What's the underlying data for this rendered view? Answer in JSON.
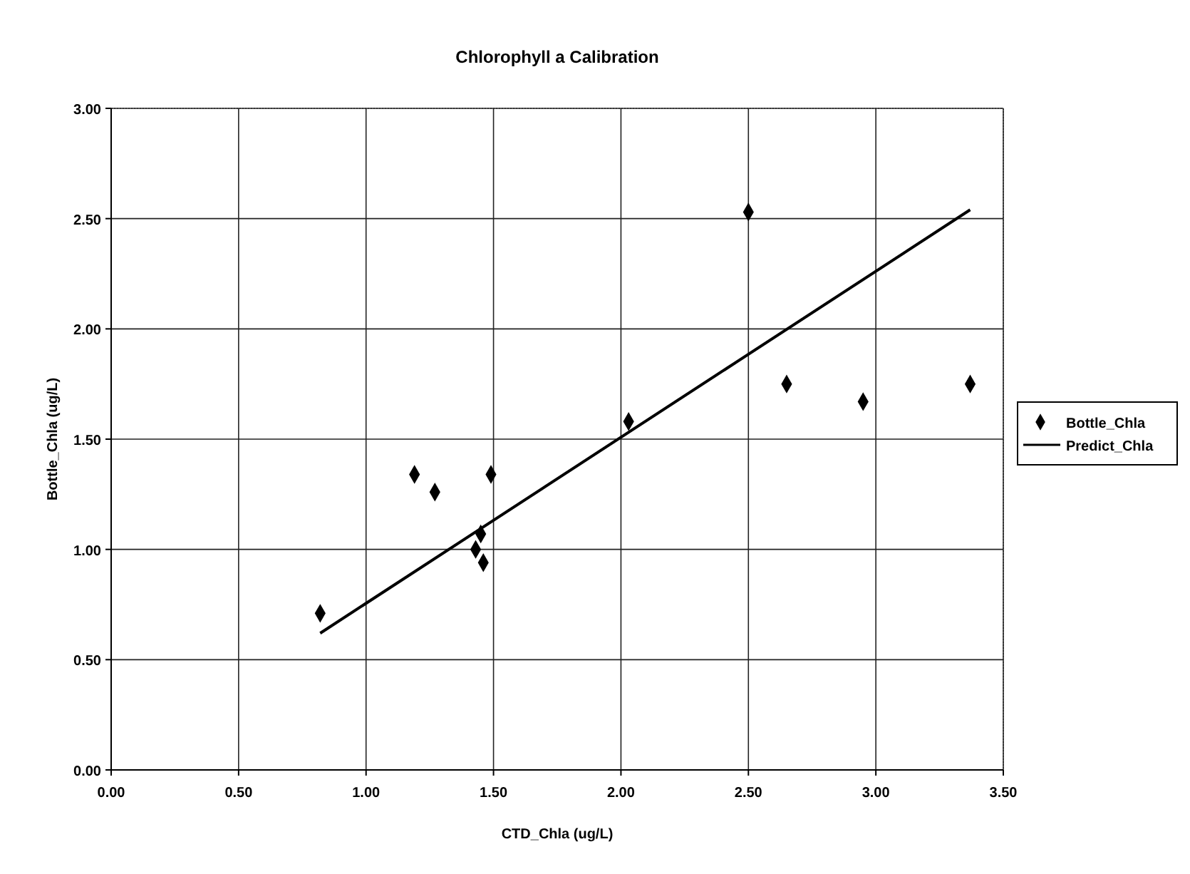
{
  "chart_data": {
    "type": "scatter",
    "title": "Chlorophyll a Calibration",
    "xlabel": "CTD_Chla (ug/L)",
    "ylabel": "Bottle_Chla (ug/L)",
    "xlim": [
      0,
      3.5
    ],
    "ylim": [
      0,
      3
    ],
    "xticks": [
      {
        "value": 0,
        "label": "0.00"
      },
      {
        "value": 0.5,
        "label": "0.50"
      },
      {
        "value": 1,
        "label": "1.00"
      },
      {
        "value": 1.5,
        "label": "1.50"
      },
      {
        "value": 2,
        "label": "2.00"
      },
      {
        "value": 2.5,
        "label": "2.50"
      },
      {
        "value": 3,
        "label": "3.00"
      },
      {
        "value": 3.5,
        "label": "3.50"
      }
    ],
    "yticks": [
      {
        "value": 0,
        "label": "0.00"
      },
      {
        "value": 0.5,
        "label": "0.50"
      },
      {
        "value": 1,
        "label": "1.00"
      },
      {
        "value": 1.5,
        "label": "1.50"
      },
      {
        "value": 2,
        "label": "2.00"
      },
      {
        "value": 2.5,
        "label": "2.50"
      },
      {
        "value": 3,
        "label": "3.00"
      }
    ],
    "grid": true,
    "legend": "right",
    "series": [
      {
        "name": "Bottle_Chla",
        "color": "#000000",
        "marker": "diamond",
        "x": [
          0.82,
          1.19,
          1.27,
          1.43,
          1.45,
          1.46,
          1.49,
          2.03,
          2.5,
          2.65,
          2.95,
          3.37
        ],
        "values": [
          0.71,
          1.34,
          1.26,
          1.0,
          1.07,
          0.94,
          1.34,
          1.58,
          2.53,
          1.75,
          1.67,
          1.75
        ]
      },
      {
        "name": "Predict_Chla",
        "type": "line",
        "color": "#000000",
        "marker": "none",
        "line_style": "solid",
        "x": [
          0.82,
          3.37
        ],
        "values": [
          0.62,
          2.54
        ]
      }
    ]
  }
}
